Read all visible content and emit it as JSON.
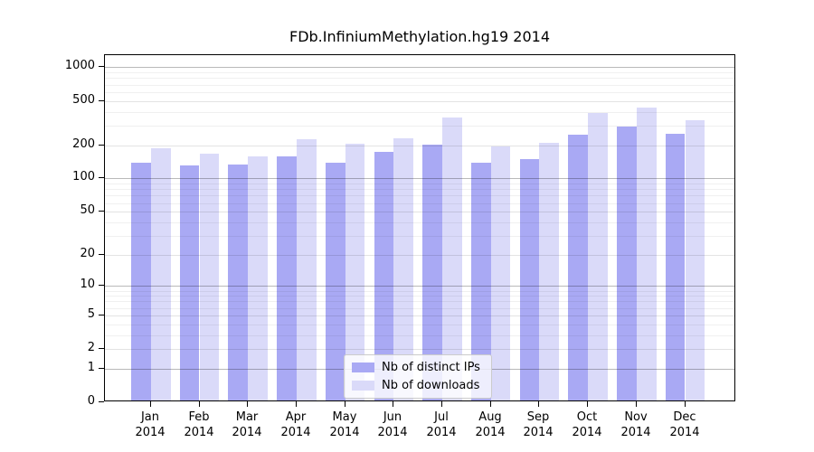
{
  "title": "FDb.InfiniumMethylation.hg19 2014",
  "colors": {
    "distinct_ips_bar": "#a9a9f4",
    "downloads_bar": "#dadaf9",
    "grid_major": "#b9b9b9",
    "grid_labeled": "#e3e3e3",
    "grid_minor": "#f0f0f0"
  },
  "legend": {
    "items": [
      {
        "label": "Nb of distinct IPs",
        "color": "#a9a9f4"
      },
      {
        "label": "Nb of downloads",
        "color": "#dadaf9"
      }
    ]
  },
  "y_axis": {
    "tick_labels": [
      "0",
      "1",
      "2",
      "5",
      "10",
      "20",
      "50",
      "100",
      "200",
      "500",
      "1000"
    ]
  },
  "x_axis": {
    "year": "2014",
    "months": [
      "Jan",
      "Feb",
      "Mar",
      "Apr",
      "May",
      "Jun",
      "Jul",
      "Aug",
      "Sep",
      "Oct",
      "Nov",
      "Dec"
    ]
  },
  "chart_data": {
    "type": "bar",
    "title": "FDb.InfiniumMethylation.hg19 2014",
    "categories": [
      "Jan 2014",
      "Feb 2014",
      "Mar 2014",
      "Apr 2014",
      "May 2014",
      "Jun 2014",
      "Jul 2014",
      "Aug 2014",
      "Sep 2014",
      "Oct 2014",
      "Nov 2014",
      "Dec 2014"
    ],
    "series": [
      {
        "name": "Nb of distinct IPs",
        "values": [
          134,
          126,
          128,
          154,
          134,
          167,
          193,
          134,
          144,
          240,
          284,
          243
        ]
      },
      {
        "name": "Nb of downloads",
        "values": [
          180,
          161,
          152,
          219,
          197,
          223,
          344,
          186,
          204,
          378,
          423,
          320
        ]
      }
    ],
    "y_scale": "log10(1+v)",
    "y_ticks": [
      0,
      1,
      2,
      5,
      10,
      20,
      50,
      100,
      200,
      500,
      1000
    ],
    "y_minor_ticks": [
      3,
      4,
      6,
      7,
      8,
      9,
      30,
      40,
      60,
      70,
      80,
      90,
      300,
      400,
      600,
      700,
      800,
      900
    ],
    "ylim_top_approx": 1270,
    "grid": "horizontal",
    "legend_position": "inside-bottom-center",
    "xlabel": "",
    "ylabel": ""
  }
}
